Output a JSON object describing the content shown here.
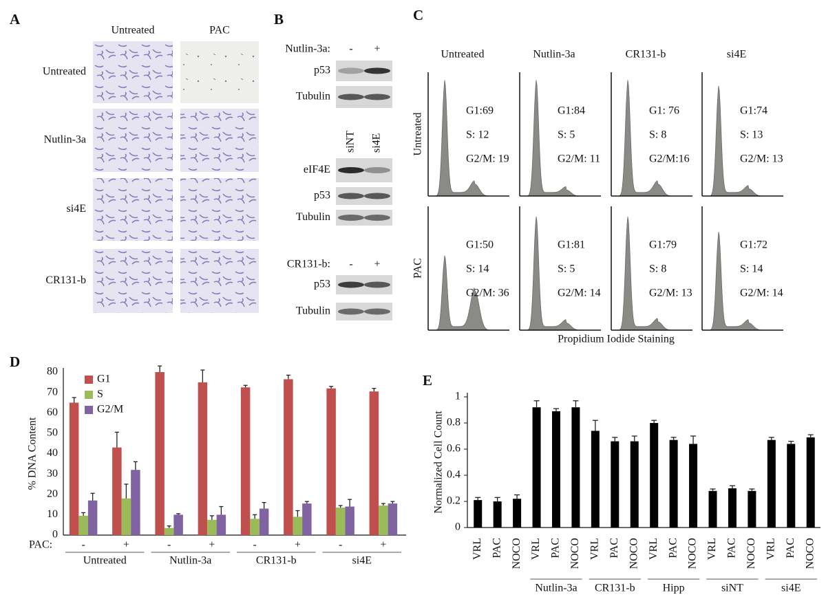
{
  "panels": {
    "A": {
      "label": "A",
      "columns": [
        "Untreated",
        "PAC"
      ],
      "rows": [
        "Untreated",
        "Nutlin-3a",
        "si4E",
        "CR131-b"
      ]
    },
    "B": {
      "label": "B",
      "blots": [
        {
          "treatment": "Nutlin-3a:",
          "lanes": [
            "-",
            "+"
          ],
          "bands": [
            "p53",
            "Tubulin"
          ]
        },
        {
          "lanes": [
            "siNT",
            "si4E"
          ],
          "bands": [
            "eIF4E",
            "p53",
            "Tubulin"
          ]
        },
        {
          "treatment": "CR131-b:",
          "lanes": [
            "-",
            "+"
          ],
          "bands": [
            "p53",
            "Tubulin"
          ]
        }
      ]
    },
    "C": {
      "label": "C",
      "columns": [
        "Untreated",
        "Nutlin-3a",
        "CR131-b",
        "si4E"
      ],
      "rows": [
        "Untreated",
        "PAC"
      ],
      "cells": [
        [
          [
            "G1:69",
            "S: 12",
            "G2/M: 19"
          ],
          [
            "G1:84",
            "S: 5",
            "G2/M: 11"
          ],
          [
            "G1: 76",
            "S: 8",
            "G2/M:16"
          ],
          [
            "G1:74",
            "S: 13",
            "G2/M: 13"
          ]
        ],
        [
          [
            "G1:50",
            "S: 14",
            "G2/M: 36"
          ],
          [
            "G1:81",
            "S: 5",
            "G2/M: 14"
          ],
          [
            "G1:79",
            "S: 8",
            "G2/M: 13"
          ],
          [
            "G1:72",
            "S: 14",
            "G2/M: 14"
          ]
        ]
      ],
      "xlabel": "Propidium Iodide Staining"
    }
  },
  "chart_data": [
    {
      "type": "bar",
      "label": "D",
      "ylabel": "% DNA Content",
      "categories": [
        "-",
        "+",
        "-",
        "+",
        "-",
        "+",
        "-",
        "+"
      ],
      "category_label": "PAC:",
      "groups": [
        "Untreated",
        "Nutlin-3a",
        "CR131-b",
        "si4E"
      ],
      "series": [
        {
          "name": "G1",
          "color": "#c0504d",
          "values": [
            65,
            43,
            80,
            75,
            72.5,
            76.5,
            72,
            70.5
          ],
          "errors": [
            2.5,
            7.5,
            3,
            6,
            1,
            2,
            1,
            1.5
          ]
        },
        {
          "name": "S",
          "color": "#9bbb59",
          "values": [
            9.5,
            18,
            3.5,
            7.5,
            8,
            9,
            13.5,
            14.5
          ],
          "errors": [
            1.5,
            7,
            1,
            2,
            2,
            3,
            1,
            1
          ]
        },
        {
          "name": "G2/M",
          "color": "#8064a2",
          "values": [
            17,
            32,
            10,
            10,
            13,
            15.5,
            14,
            15.5
          ],
          "errors": [
            3.5,
            4,
            0.5,
            4,
            3,
            1,
            3.5,
            1
          ]
        }
      ],
      "ylim": [
        0,
        80
      ],
      "yticks": [
        0,
        10,
        20,
        30,
        40,
        50,
        60,
        70,
        80
      ],
      "legend": "upper-left"
    },
    {
      "type": "bar",
      "label": "E",
      "ylabel": "Normalized Cell Count",
      "categories": [
        "VRL",
        "PAC",
        "NOCO",
        "VRL",
        "PAC",
        "NOCO",
        "VRL",
        "PAC",
        "NOCO",
        "VRL",
        "PAC",
        "NOCO",
        "VRL",
        "PAC",
        "NOCO",
        "VRL",
        "PAC",
        "NOCO"
      ],
      "groups": [
        null,
        "Nutlin-3a",
        "CR131-b",
        "Hipp",
        "siNT",
        "si4E"
      ],
      "color": "#000000",
      "values": [
        0.21,
        0.2,
        0.22,
        0.92,
        0.89,
        0.92,
        0.74,
        0.66,
        0.66,
        0.8,
        0.67,
        0.64,
        0.28,
        0.3,
        0.28,
        0.67,
        0.64,
        0.69
      ],
      "errors": [
        0.02,
        0.03,
        0.03,
        0.05,
        0.02,
        0.05,
        0.08,
        0.03,
        0.04,
        0.02,
        0.02,
        0.06,
        0.015,
        0.02,
        0.015,
        0.02,
        0.02,
        0.02
      ],
      "ylim": [
        0,
        1
      ],
      "yticks": [
        0,
        0.2,
        0.4,
        0.6,
        0.8,
        1
      ]
    }
  ]
}
